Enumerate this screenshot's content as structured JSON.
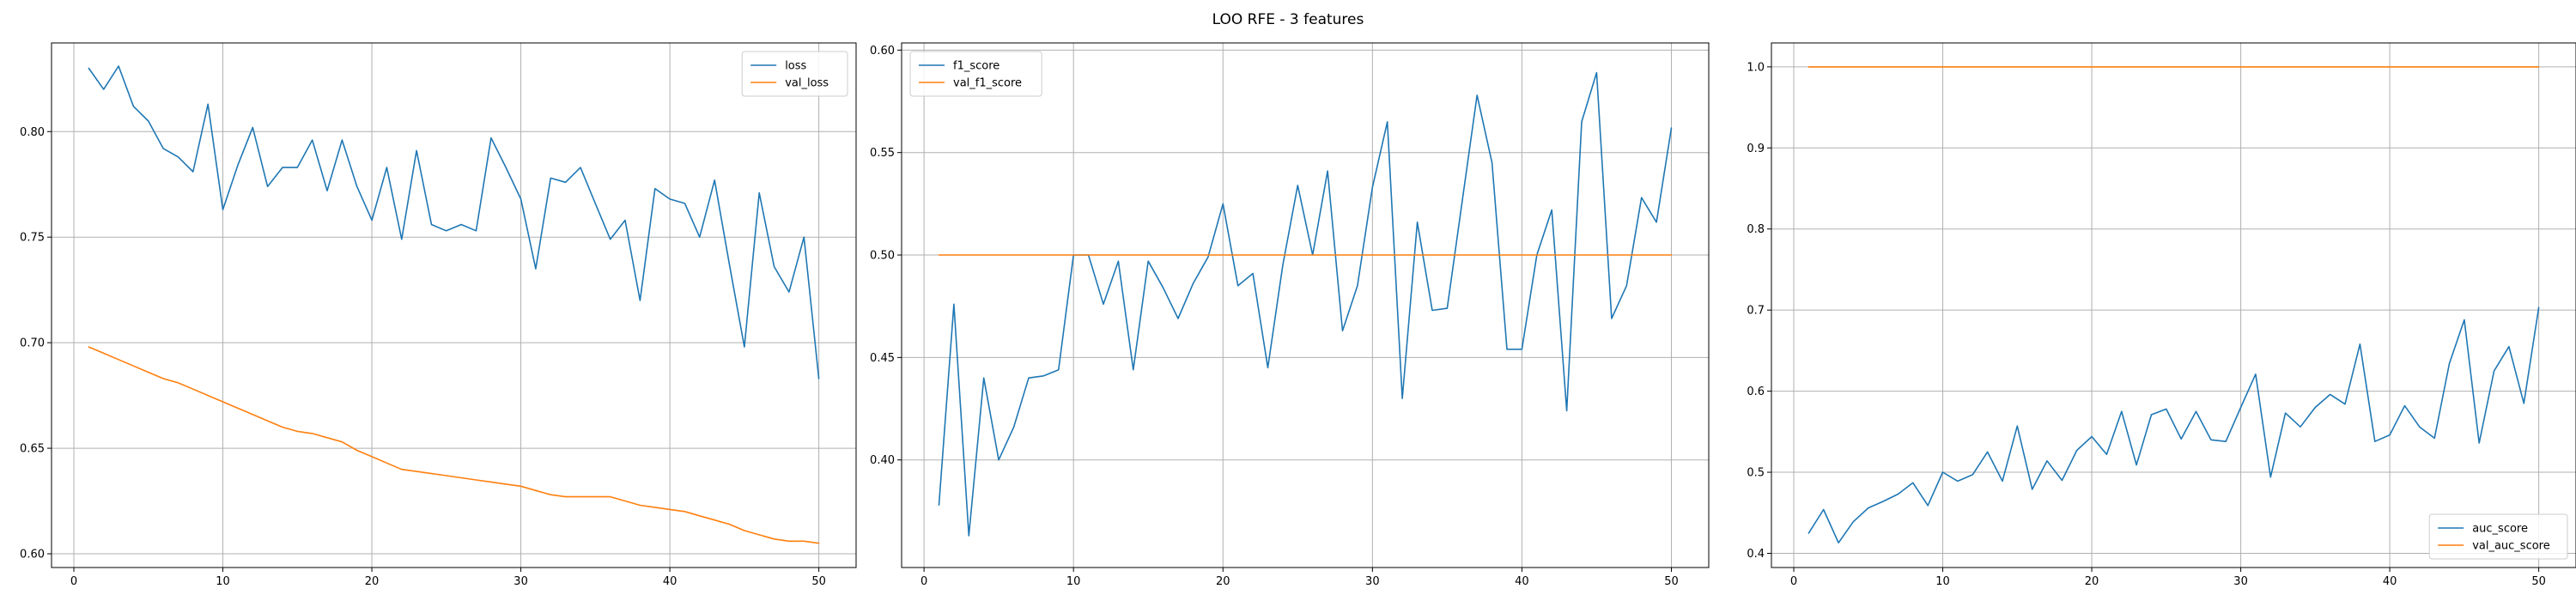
{
  "figure": {
    "title": "LOO RFE - 3 features"
  },
  "colors": {
    "series1": "#1f77b4",
    "series2": "#ff7f0e",
    "grid": "#b0b0b0"
  },
  "chart_data": [
    {
      "type": "line",
      "title": "",
      "xlabel": "",
      "ylabel": "",
      "grid": true,
      "legend_position": "top-right",
      "xlim": [
        -1.5,
        52.5
      ],
      "ylim": [
        0.5935,
        0.842
      ],
      "xticks": [
        0,
        10,
        20,
        30,
        40,
        50
      ],
      "yticks": [
        0.6,
        0.65,
        0.7,
        0.75,
        0.8
      ],
      "xtick_labels": [
        "0",
        "10",
        "20",
        "30",
        "40",
        "50"
      ],
      "ytick_labels": [
        "0.60",
        "0.65",
        "0.70",
        "0.75",
        "0.80"
      ],
      "series": [
        {
          "name": "loss",
          "color": "#1f77b4",
          "x": [
            1,
            2,
            3,
            4,
            5,
            6,
            7,
            8,
            9,
            10,
            11,
            12,
            13,
            14,
            15,
            16,
            17,
            18,
            19,
            20,
            21,
            22,
            23,
            24,
            25,
            26,
            27,
            28,
            29,
            30,
            31,
            32,
            33,
            34,
            35,
            36,
            37,
            38,
            39,
            40,
            41,
            42,
            43,
            44,
            45,
            46,
            47,
            48,
            49,
            50
          ],
          "y": [
            0.83,
            0.82,
            0.831,
            0.812,
            0.805,
            0.792,
            0.788,
            0.781,
            0.813,
            0.763,
            0.784,
            0.802,
            0.774,
            0.783,
            0.783,
            0.796,
            0.772,
            0.796,
            0.774,
            0.758,
            0.783,
            0.749,
            0.791,
            0.756,
            0.753,
            0.756,
            0.753,
            0.797,
            0.783,
            0.768,
            0.735,
            0.778,
            0.776,
            0.783,
            0.766,
            0.749,
            0.758,
            0.72,
            0.773,
            0.768,
            0.766,
            0.75,
            0.777,
            0.737,
            0.698,
            0.771,
            0.736,
            0.724,
            0.75,
            0.683
          ]
        },
        {
          "name": "val_loss",
          "color": "#ff7f0e",
          "x": [
            1,
            2,
            3,
            4,
            5,
            6,
            7,
            8,
            9,
            10,
            11,
            12,
            13,
            14,
            15,
            16,
            17,
            18,
            19,
            20,
            21,
            22,
            23,
            24,
            25,
            26,
            27,
            28,
            29,
            30,
            31,
            32,
            33,
            34,
            35,
            36,
            37,
            38,
            39,
            40,
            41,
            42,
            43,
            44,
            45,
            46,
            47,
            48,
            49,
            50
          ],
          "y": [
            0.698,
            0.695,
            0.692,
            0.689,
            0.686,
            0.683,
            0.681,
            0.678,
            0.675,
            0.672,
            0.669,
            0.666,
            0.663,
            0.66,
            0.658,
            0.657,
            0.655,
            0.653,
            0.649,
            0.646,
            0.643,
            0.64,
            0.639,
            0.638,
            0.637,
            0.636,
            0.635,
            0.634,
            0.633,
            0.632,
            0.63,
            0.628,
            0.627,
            0.627,
            0.627,
            0.627,
            0.625,
            0.623,
            0.622,
            0.621,
            0.62,
            0.618,
            0.616,
            0.614,
            0.611,
            0.609,
            0.607,
            0.606,
            0.606,
            0.605
          ]
        }
      ]
    },
    {
      "type": "line",
      "title": "",
      "xlabel": "",
      "ylabel": "",
      "grid": true,
      "legend_position": "top-left",
      "xlim": [
        -1.5,
        52.5
      ],
      "ylim": [
        0.3475,
        0.6035
      ],
      "xticks": [
        0,
        10,
        20,
        30,
        40,
        50
      ],
      "yticks": [
        0.4,
        0.45,
        0.5,
        0.55,
        0.6
      ],
      "xtick_labels": [
        "0",
        "10",
        "20",
        "30",
        "40",
        "50"
      ],
      "ytick_labels": [
        "0.40",
        "0.45",
        "0.50",
        "0.55",
        "0.60"
      ],
      "series": [
        {
          "name": "f1_score",
          "color": "#1f77b4",
          "x": [
            1,
            2,
            3,
            4,
            5,
            6,
            7,
            8,
            9,
            10,
            11,
            12,
            13,
            14,
            15,
            16,
            17,
            18,
            19,
            20,
            21,
            22,
            23,
            24,
            25,
            26,
            27,
            28,
            29,
            30,
            31,
            32,
            33,
            34,
            35,
            36,
            37,
            38,
            39,
            40,
            41,
            42,
            43,
            44,
            45,
            46,
            47,
            48,
            49,
            50
          ],
          "y": [
            0.378,
            0.476,
            0.363,
            0.44,
            0.4,
            0.416,
            0.44,
            0.441,
            0.444,
            0.5,
            0.5,
            0.476,
            0.497,
            0.444,
            0.497,
            0.484,
            0.469,
            0.486,
            0.499,
            0.525,
            0.485,
            0.491,
            0.445,
            0.495,
            0.534,
            0.5,
            0.541,
            0.463,
            0.485,
            0.533,
            0.565,
            0.43,
            0.516,
            0.473,
            0.474,
            0.526,
            0.578,
            0.545,
            0.454,
            0.454,
            0.5,
            0.522,
            0.424,
            0.565,
            0.589,
            0.469,
            0.485,
            0.528,
            0.516,
            0.562
          ]
        },
        {
          "name": "val_f1_score",
          "color": "#ff7f0e",
          "x": [
            1,
            2,
            3,
            4,
            5,
            6,
            7,
            8,
            9,
            10,
            11,
            12,
            13,
            14,
            15,
            16,
            17,
            18,
            19,
            20,
            21,
            22,
            23,
            24,
            25,
            26,
            27,
            28,
            29,
            30,
            31,
            32,
            33,
            34,
            35,
            36,
            37,
            38,
            39,
            40,
            41,
            42,
            43,
            44,
            45,
            46,
            47,
            48,
            49,
            50
          ],
          "y": [
            0.5,
            0.5,
            0.5,
            0.5,
            0.5,
            0.5,
            0.5,
            0.5,
            0.5,
            0.5,
            0.5,
            0.5,
            0.5,
            0.5,
            0.5,
            0.5,
            0.5,
            0.5,
            0.5,
            0.5,
            0.5,
            0.5,
            0.5,
            0.5,
            0.5,
            0.5,
            0.5,
            0.5,
            0.5,
            0.5,
            0.5,
            0.5,
            0.5,
            0.5,
            0.5,
            0.5,
            0.5,
            0.5,
            0.5,
            0.5,
            0.5,
            0.5,
            0.5,
            0.5,
            0.5,
            0.5,
            0.5,
            0.5,
            0.5,
            0.5
          ]
        }
      ]
    },
    {
      "type": "line",
      "title": "",
      "xlabel": "",
      "ylabel": "",
      "grid": true,
      "legend_position": "bottom-right",
      "xlim": [
        -1.5,
        52.5
      ],
      "ylim": [
        0.3825,
        1.0295
      ],
      "xticks": [
        0,
        10,
        20,
        30,
        40,
        50
      ],
      "yticks": [
        0.4,
        0.5,
        0.6,
        0.7,
        0.8,
        0.9,
        1.0
      ],
      "xtick_labels": [
        "0",
        "10",
        "20",
        "30",
        "40",
        "50"
      ],
      "ytick_labels": [
        "0.4",
        "0.5",
        "0.6",
        "0.7",
        "0.8",
        "0.9",
        "1.0"
      ],
      "series": [
        {
          "name": "auc_score",
          "color": "#1f77b4",
          "x": [
            1,
            2,
            3,
            4,
            5,
            6,
            7,
            8,
            9,
            10,
            11,
            12,
            13,
            14,
            15,
            16,
            17,
            18,
            19,
            20,
            21,
            22,
            23,
            24,
            25,
            26,
            27,
            28,
            29,
            30,
            31,
            32,
            33,
            34,
            35,
            36,
            37,
            38,
            39,
            40,
            41,
            42,
            43,
            44,
            45,
            46,
            47,
            48,
            49,
            50
          ],
          "y": [
            0.425,
            0.454,
            0.413,
            0.439,
            0.456,
            0.464,
            0.473,
            0.487,
            0.459,
            0.5,
            0.489,
            0.497,
            0.525,
            0.489,
            0.557,
            0.479,
            0.514,
            0.49,
            0.527,
            0.544,
            0.522,
            0.575,
            0.509,
            0.571,
            0.578,
            0.541,
            0.575,
            0.54,
            0.538,
            0.58,
            0.621,
            0.494,
            0.573,
            0.556,
            0.58,
            0.596,
            0.584,
            0.658,
            0.538,
            0.546,
            0.582,
            0.556,
            0.542,
            0.634,
            0.688,
            0.536,
            0.625,
            0.655,
            0.585,
            0.703
          ]
        },
        {
          "name": "val_auc_score",
          "color": "#ff7f0e",
          "x": [
            1,
            2,
            3,
            4,
            5,
            6,
            7,
            8,
            9,
            10,
            11,
            12,
            13,
            14,
            15,
            16,
            17,
            18,
            19,
            20,
            21,
            22,
            23,
            24,
            25,
            26,
            27,
            28,
            29,
            30,
            31,
            32,
            33,
            34,
            35,
            36,
            37,
            38,
            39,
            40,
            41,
            42,
            43,
            44,
            45,
            46,
            47,
            48,
            49,
            50
          ],
          "y": [
            1.0,
            1.0,
            1.0,
            1.0,
            1.0,
            1.0,
            1.0,
            1.0,
            1.0,
            1.0,
            1.0,
            1.0,
            1.0,
            1.0,
            1.0,
            1.0,
            1.0,
            1.0,
            1.0,
            1.0,
            1.0,
            1.0,
            1.0,
            1.0,
            1.0,
            1.0,
            1.0,
            1.0,
            1.0,
            1.0,
            1.0,
            1.0,
            1.0,
            1.0,
            1.0,
            1.0,
            1.0,
            1.0,
            1.0,
            1.0,
            1.0,
            1.0,
            1.0,
            1.0,
            1.0,
            1.0,
            1.0,
            1.0,
            1.0,
            1.0
          ]
        }
      ]
    }
  ]
}
